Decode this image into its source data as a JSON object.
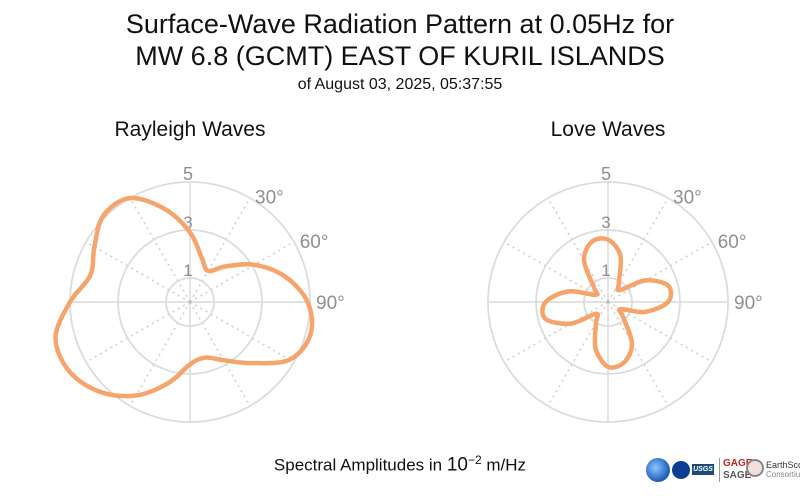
{
  "title_line1": "Surface-Wave Radiation Pattern at 0.05Hz for",
  "title_line2": "MW 6.8 (GCMT) EAST OF KURIL ISLANDS",
  "title_line3": "of August 03, 2025, 05:37:55",
  "xlabel_prefix": "Spectral Amplitudes in ",
  "xlabel_power": "10",
  "xlabel_exp": "−2",
  "xlabel_unit": " m/Hz",
  "logos": {
    "gage": "GAGE",
    "sage": "SAGE",
    "earthscope": "EarthScope",
    "consortium": "Consortium",
    "usgs": "USGS"
  },
  "chart_data": [
    {
      "type": "polar",
      "title": "Rayleigh Waves",
      "rticks": [
        1,
        3,
        5
      ],
      "rmax": 5,
      "angle_tick_labels": [
        "30°",
        "60°",
        "90°"
      ],
      "color": "#f6a46b",
      "theta_deg": [
        0,
        15,
        30,
        45,
        60,
        75,
        90,
        105,
        120,
        135,
        150,
        165,
        180,
        195,
        210,
        225,
        240,
        255,
        270,
        285,
        300,
        315,
        330,
        345
      ],
      "r": [
        2.9,
        1.9,
        1.5,
        2.1,
        3.1,
        4.1,
        4.9,
        5.2,
        4.8,
        3.6,
        2.8,
        2.4,
        2.6,
        3.5,
        4.5,
        5.3,
        5.8,
        5.8,
        5.0,
        4.3,
        4.6,
        5.1,
        5.0,
        4.0
      ]
    },
    {
      "type": "polar",
      "title": "Love Waves",
      "rticks": [
        1,
        3,
        5
      ],
      "rmax": 5,
      "angle_tick_labels": [
        "30°",
        "60°",
        "90°"
      ],
      "color": "#f6a46b",
      "theta_deg": [
        0,
        15,
        30,
        45,
        60,
        75,
        90,
        105,
        120,
        135,
        150,
        165,
        180,
        195,
        210,
        225,
        240,
        255,
        270,
        285,
        300,
        315,
        330,
        345
      ],
      "r": [
        2.6,
        2.0,
        0.9,
        0.7,
        1.8,
        2.6,
        2.5,
        1.6,
        0.6,
        0.9,
        2.0,
        2.6,
        2.7,
        2.0,
        1.0,
        0.7,
        1.8,
        2.7,
        2.6,
        1.7,
        0.6,
        0.8,
        2.0,
        2.6
      ]
    }
  ]
}
